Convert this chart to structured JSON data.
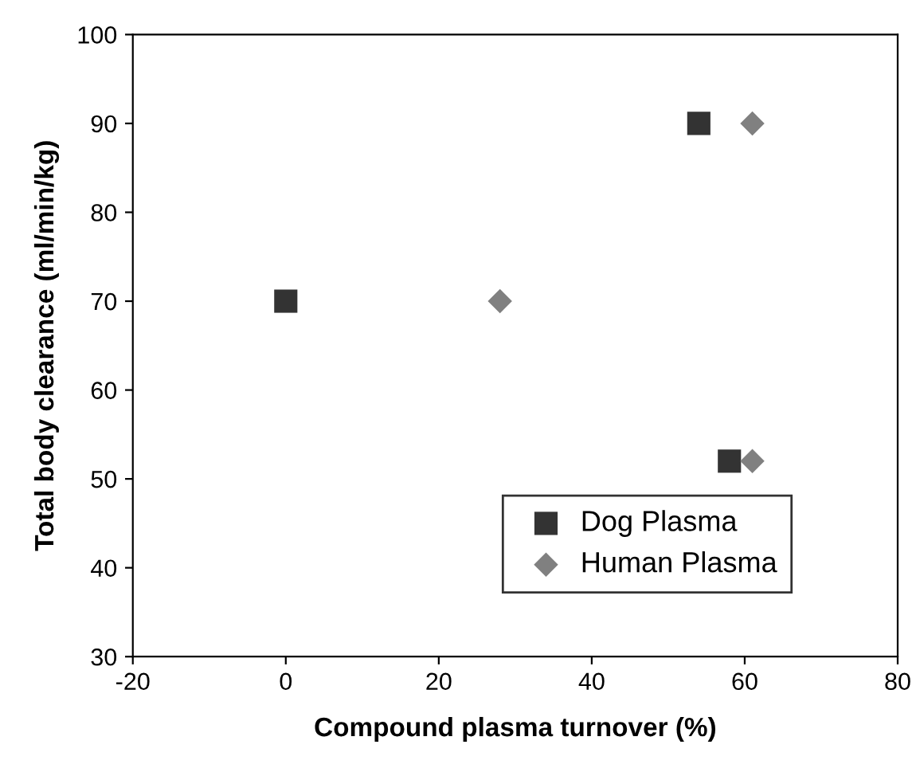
{
  "chart_data": {
    "type": "scatter",
    "xlabel": "Compound plasma turnover (%)",
    "ylabel": "Total body clearance (ml/min/kg)",
    "xlim": [
      -20,
      80
    ],
    "xticks": [
      -20,
      0,
      20,
      40,
      60,
      80
    ],
    "ylim": [
      30,
      100
    ],
    "yticks": [
      30,
      40,
      50,
      60,
      70,
      80,
      90,
      100
    ],
    "grid": false,
    "legend": "bottom right",
    "series": [
      {
        "name": "Dog Plasma",
        "color": "#333333",
        "marker": "square",
        "x": [
          0,
          54,
          58
        ],
        "values": [
          70,
          90,
          52
        ]
      },
      {
        "name": "Human Plasma",
        "color": "#808080",
        "marker": "diamond",
        "x": [
          28,
          61,
          61
        ],
        "values": [
          70,
          90,
          52
        ]
      }
    ]
  }
}
